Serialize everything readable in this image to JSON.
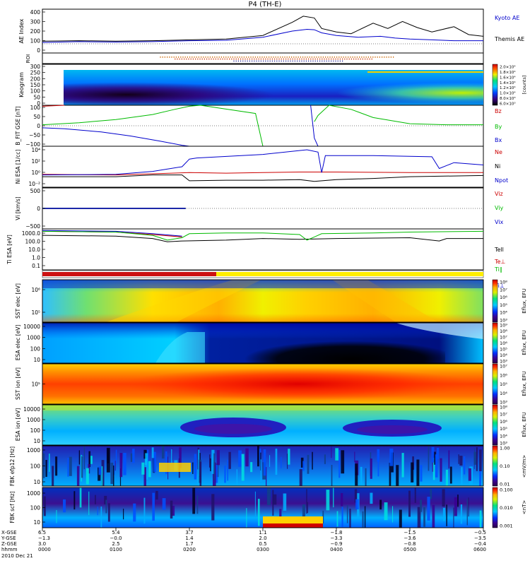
{
  "page_title": "P4 (TH-E)",
  "date_label": "2010 Dec 21",
  "chart_data": [
    {
      "type": "line",
      "id": "ae",
      "ylabel": "AE Index",
      "ylim": [
        -100,
        400
      ],
      "yticks": [
        "400",
        "300",
        "200",
        "100",
        "0"
      ],
      "series": [
        {
          "name": "Kyoto AE",
          "color": "#0000cc",
          "x": [
            0,
            0.5,
            1,
            1.5,
            2,
            2.5,
            3.0,
            3.4,
            3.6,
            3.7,
            3.8,
            4.0,
            4.3,
            4.6,
            4.8,
            5.0,
            5.3,
            5.6,
            6.0
          ],
          "values": [
            20,
            30,
            25,
            30,
            40,
            45,
            80,
            150,
            170,
            165,
            130,
            100,
            80,
            90,
            70,
            60,
            50,
            40,
            40
          ]
        },
        {
          "name": "Themis AE",
          "color": "#000000",
          "x": [
            0,
            0.5,
            1,
            1.5,
            2,
            2.5,
            3.0,
            3.4,
            3.55,
            3.7,
            3.8,
            4.0,
            4.2,
            4.5,
            4.7,
            4.9,
            5.1,
            5.3,
            5.6,
            5.8,
            6.0
          ],
          "values": [
            35,
            40,
            35,
            40,
            50,
            60,
            100,
            250,
            320,
            300,
            180,
            140,
            120,
            240,
            180,
            260,
            190,
            140,
            200,
            110,
            90
          ]
        }
      ]
    },
    {
      "type": "line",
      "id": "roi",
      "ylabel": "ROI",
      "series": [
        {
          "name": "roi-1",
          "color": "#cc6600",
          "x": [
            1.6,
            4.8
          ],
          "values": [
            1,
            1
          ]
        },
        {
          "name": "roi-2",
          "color": "#cc3300",
          "x": [
            1.8,
            4.5
          ],
          "values": [
            2,
            2
          ]
        },
        {
          "name": "roi-3",
          "color": "#333399",
          "x": [
            2.6,
            4.1
          ],
          "values": [
            3,
            3
          ]
        }
      ]
    },
    {
      "type": "heatmap",
      "id": "keogram",
      "ylabel": "Keogram",
      "ylim": [
        0,
        300
      ],
      "yticks": [
        "300",
        "250",
        "200",
        "150",
        "100",
        "50",
        "0"
      ],
      "colorbar_label": "[counts]",
      "colorbar_ticks": [
        "2.0×10⁴",
        "1.8×10⁴",
        "1.6×10⁴",
        "1.4×10⁴",
        "1.2×10⁴",
        "1.0×10⁴",
        "8.0×10³",
        "6.0×10³"
      ]
    },
    {
      "type": "line",
      "id": "bfield",
      "ylabel": "B_FIT GSE [nT]",
      "ylim": [
        -100,
        100
      ],
      "yticks": [
        "100",
        "50",
        "0",
        "−50",
        "−100"
      ],
      "series": [
        {
          "name": "Bz",
          "color": "#cc0000",
          "x": [
            0,
            0.3
          ],
          "values": [
            95,
            100
          ]
        },
        {
          "name": "By",
          "color": "#00bb00",
          "x": [
            0,
            0.5,
            1.0,
            1.5,
            1.8,
            2.0,
            2.15,
            2.9,
            3.0,
            3.5,
            3.7,
            3.75,
            3.9,
            4.2,
            4.5,
            5.0,
            5.5,
            6.0
          ],
          "values": [
            5,
            15,
            30,
            55,
            80,
            95,
            100,
            60,
            -100,
            null,
            20,
            50,
            100,
            80,
            40,
            10,
            5,
            5
          ]
        },
        {
          "name": "Bx",
          "color": "#0000cc",
          "x": [
            0,
            0.3,
            0.8,
            1.2,
            1.6,
            1.9,
            2.0,
            3.6,
            3.65,
            3.7,
            3.75
          ],
          "values": [
            -10,
            -15,
            -30,
            -50,
            -75,
            -95,
            -100,
            null,
            100,
            -60,
            -100
          ]
        }
      ]
    },
    {
      "type": "line",
      "id": "density",
      "ylabel": "Ni ESA [1/cc]",
      "ylim": [
        -3,
        4
      ],
      "ylog": true,
      "yticks": [
        "10⁴",
        "10²",
        "10⁰",
        "10⁻²"
      ],
      "series": [
        {
          "name": "Ne",
          "color": "#cc0000",
          "x": [
            0,
            1,
            2,
            2.5,
            3.0,
            3.5,
            4.0,
            5.0,
            6.0
          ],
          "values": [
            -0.8,
            -0.9,
            -0.5,
            -0.6,
            -0.5,
            -0.4,
            -0.4,
            -0.5,
            -0.5
          ]
        },
        {
          "name": "Ni",
          "color": "#0000cc",
          "x": [
            0,
            1.0,
            1.5,
            1.9,
            2.0,
            2.1,
            3.0,
            3.6,
            3.75,
            3.8,
            3.85,
            4.5,
            5.3,
            5.4,
            5.6,
            6.0
          ],
          "values": [
            -0.9,
            -0.8,
            -0.3,
            0.5,
            1.8,
            2.0,
            2.6,
            3.4,
            3.0,
            -0.5,
            2.4,
            2.4,
            2.2,
            0.2,
            1.2,
            0.8
          ]
        },
        {
          "name": "Npot",
          "color": "#000000",
          "x": [
            0,
            1.0,
            1.5,
            1.9,
            2.0,
            2.5,
            3.0,
            3.5,
            3.7,
            4.0,
            4.5,
            5.0,
            6.0
          ],
          "values": [
            -1.2,
            -1.2,
            -0.9,
            -0.9,
            -1.9,
            -1.8,
            -1.8,
            -1.7,
            -2.0,
            -1.7,
            -1.5,
            -1.2,
            -1.0
          ]
        }
      ]
    },
    {
      "type": "line",
      "id": "velocity",
      "ylabel": "Vi [km/s]",
      "ylim": [
        -500,
        500
      ],
      "yticks": [
        "500",
        "0",
        "−500"
      ],
      "series": [
        {
          "name": "Viz",
          "color": "#cc0000",
          "x": [
            0,
            1.95
          ],
          "values": [
            0,
            0
          ]
        },
        {
          "name": "Viy",
          "color": "#00bb00",
          "x": [
            0,
            1.95
          ],
          "values": [
            0,
            0
          ]
        },
        {
          "name": "Vix",
          "color": "#0000cc",
          "x": [
            0,
            1.95
          ],
          "values": [
            0,
            0
          ]
        }
      ]
    },
    {
      "type": "line",
      "id": "temperature",
      "ylabel": "Ti ESA [eV]",
      "ylim": [
        -1.3,
        3.8
      ],
      "ylog": true,
      "yticks": [
        "1000.0",
        "100.0",
        "10.0",
        "1.0",
        "0.1"
      ],
      "series": [
        {
          "name": "Tell",
          "color": "#000000",
          "x": [
            0,
            1.0,
            1.5,
            1.7,
            1.9,
            2.5,
            3.0,
            3.5,
            4.0,
            5.0,
            5.4,
            5.5,
            6.0
          ],
          "values": [
            3.0,
            2.9,
            2.6,
            2.2,
            2.3,
            2.4,
            2.6,
            2.5,
            2.6,
            2.7,
            2.3,
            2.6,
            2.6
          ]
        },
        {
          "name": "Te⊥",
          "color": "#cc0000",
          "x": [
            0,
            1.0,
            1.5,
            1.9
          ],
          "values": [
            3.5,
            3.4,
            3.1,
            2.8
          ]
        },
        {
          "name": "Ti∥",
          "color": "#00bb00",
          "x": [
            0,
            1.0,
            1.5,
            1.7,
            1.9,
            2.0,
            2.5,
            3.0,
            3.5,
            3.6,
            3.7,
            3.8,
            4.5,
            5.0,
            6.0
          ],
          "values": [
            3.5,
            3.4,
            3.0,
            2.4,
            2.7,
            3.2,
            3.3,
            3.3,
            3.1,
            2.4,
            2.8,
            3.2,
            3.3,
            3.4,
            3.5
          ]
        },
        {
          "name": "Ti⊥",
          "color": "#0000cc",
          "x": [
            0,
            1.0,
            1.5,
            1.9
          ],
          "values": [
            3.6,
            3.5,
            3.2,
            2.9
          ]
        }
      ]
    },
    {
      "type": "heatmap",
      "id": "sst-electron",
      "ylabel": "SST elec [eV]",
      "yticks": [
        "10⁶",
        "10⁵"
      ],
      "colorbar_label": "Eflux, EFU",
      "colorbar_ticks": [
        "10⁸",
        "10⁷",
        "10⁶",
        "10⁵",
        "10⁴",
        "10³"
      ]
    },
    {
      "type": "heatmap",
      "id": "esa-electron",
      "ylabel": "ESA elec [eV]",
      "yticks": [
        "10000",
        "1000",
        "100",
        "10"
      ],
      "colorbar_label": "Eflux, EFU",
      "colorbar_ticks": [
        "10⁹",
        "10⁸",
        "10⁷",
        "10⁶",
        "10⁵",
        "10⁴",
        "10³"
      ]
    },
    {
      "type": "heatmap",
      "id": "sst-ion",
      "ylabel": "SST ion [eV]",
      "yticks": [
        "10⁵"
      ],
      "colorbar_label": "Eflux, EFU",
      "colorbar_ticks": [
        "10⁷",
        "10⁶",
        "10⁵",
        "10⁴",
        "10³"
      ]
    },
    {
      "type": "heatmap",
      "id": "esa-ion",
      "ylabel": "ESA ion [eV]",
      "yticks": [
        "10000",
        "1000",
        "100",
        "10"
      ],
      "colorbar_label": "Eflux, EFU",
      "colorbar_ticks": [
        "10⁸",
        "10⁷",
        "10⁶",
        "10⁵",
        "10⁴",
        "10³"
      ]
    },
    {
      "type": "heatmap",
      "id": "fbk-e",
      "ylabel": "FBK efp12 [Hz]",
      "yticks": [
        "1000",
        "100",
        "10"
      ],
      "colorbar_label": "<mV/m>",
      "colorbar_ticks": [
        "1.00",
        "0.10",
        "0.01"
      ]
    },
    {
      "type": "heatmap",
      "id": "fbk-b",
      "ylabel": "FBK scf [Hz]",
      "yticks": [
        "1000",
        "100",
        "10"
      ],
      "colorbar_label": "<nT>",
      "colorbar_ticks": [
        "0.100",
        "0.010",
        "0.001"
      ]
    }
  ],
  "legends": {
    "ae": [
      "Kyoto AE",
      "Themis AE"
    ],
    "bfield": [
      "Bz",
      "By",
      "Bx"
    ],
    "density": [
      "Ne",
      "Ni",
      "Npot"
    ],
    "velocity": [
      "Viz",
      "Viy",
      "Vix"
    ],
    "temperature": [
      "Tell",
      "Te⊥",
      "Ti∥",
      "Ti⊥"
    ]
  },
  "ephemeris": {
    "row_labels": [
      "X-GSE",
      "Y-GSE",
      "Z-GSE",
      "hhmm"
    ],
    "columns": [
      {
        "x": "6.5",
        "y": "−1.3",
        "z": "3.0",
        "hhmm": "0000"
      },
      {
        "x": "5.4",
        "y": "−0.0",
        "z": "2.5",
        "hhmm": "0100"
      },
      {
        "x": "3.7",
        "y": "1.4",
        "z": "1.7",
        "hhmm": "0200"
      },
      {
        "x": "1.1",
        "y": "2.0",
        "z": "0.5",
        "hhmm": "0300"
      },
      {
        "x": "−1.8",
        "y": "−3.3",
        "z": "−0.9",
        "hhmm": "0400"
      },
      {
        "x": "−1.5",
        "y": "−3.6",
        "z": "−0.8",
        "hhmm": "0500"
      },
      {
        "x": "−0.5",
        "y": "−3.5",
        "z": "−0.4",
        "hhmm": "0600"
      }
    ]
  },
  "colors": {
    "mode_bar_red": "#cc1111",
    "mode_bar_yellow": "#ffee00"
  }
}
